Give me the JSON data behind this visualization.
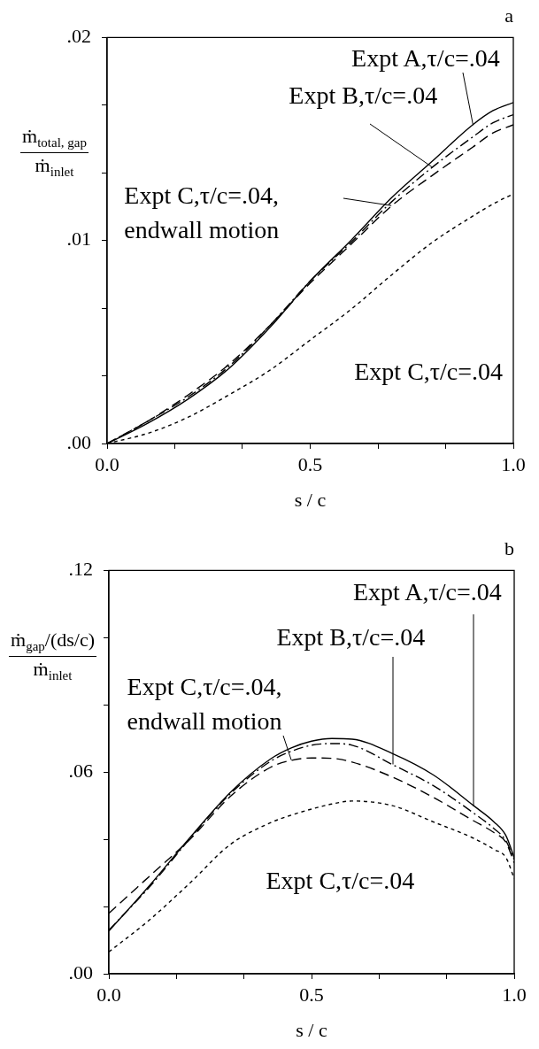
{
  "chart_data": [
    {
      "type": "line",
      "title": "a",
      "xlabel": "s / c",
      "ylabel": "ṁ$_{total, gap}$\nṁ$_{inlet}$",
      "x": [
        0,
        0.1,
        0.2,
        0.3,
        0.4,
        0.5,
        0.6,
        0.7,
        0.8,
        0.9,
        0.95,
        1
      ],
      "series": [
        {
          "name": "Expt A,τ/c=.04",
          "color": "#000000",
          "line_style": "solid",
          "values": [
            0,
            0.001,
            0.0022,
            0.0037,
            0.0057,
            0.008,
            0.01,
            0.0121,
            0.0139,
            0.0157,
            0.0164,
            0.0168
          ]
        },
        {
          "name": "Expt B,τ/c=.04",
          "color": "#000000",
          "line_style": "dashdot",
          "values": [
            0,
            0.0011,
            0.0023,
            0.0038,
            0.0058,
            0.008,
            0.0099,
            0.0119,
            0.0136,
            0.0151,
            0.0158,
            0.0162
          ]
        },
        {
          "name": "Expt C,τ/c=.04, endwall motion",
          "color": "#000000",
          "line_style": "dashed",
          "values": [
            0,
            0.0011,
            0.0024,
            0.0039,
            0.0058,
            0.0079,
            0.0098,
            0.0117,
            0.0132,
            0.0146,
            0.0153,
            0.0157
          ]
        },
        {
          "name": "Expt C,τ/c=.04",
          "color": "#000000",
          "line_style": "dotted",
          "values": [
            0,
            0.0005,
            0.0013,
            0.0024,
            0.0036,
            0.0051,
            0.0066,
            0.0083,
            0.0099,
            0.0112,
            0.0118,
            0.0123
          ]
        }
      ],
      "xlim": [
        0,
        1
      ],
      "xticks": [
        {
          "value": 0,
          "label": "0.0"
        },
        {
          "value": 0.1667,
          "label": null
        },
        {
          "value": 0.3333,
          "label": null
        },
        {
          "value": 0.5,
          "label": "0.5"
        },
        {
          "value": 0.6667,
          "label": null
        },
        {
          "value": 0.8333,
          "label": null
        },
        {
          "value": 1,
          "label": "1.0"
        }
      ],
      "ylim": [
        0,
        0.02
      ],
      "yticks": [
        {
          "value": 0,
          "label": ".00"
        },
        {
          "value": 0.00333,
          "label": null
        },
        {
          "value": 0.00667,
          "label": null
        },
        {
          "value": 0.01,
          "label": ".01"
        },
        {
          "value": 0.01333,
          "label": null
        },
        {
          "value": 0.01667,
          "label": null
        },
        {
          "value": 0.02,
          "label": ".02"
        }
      ]
    },
    {
      "type": "line",
      "title": "b",
      "xlabel": "s / c",
      "ylabel": "ṁ$_{gap}$/(ds/c)\nṁ$_{inlet}$",
      "x": [
        0,
        0.1,
        0.2,
        0.3,
        0.4,
        0.45,
        0.5,
        0.55,
        0.6,
        0.7,
        0.8,
        0.9,
        0.95,
        0.98,
        1
      ],
      "series": [
        {
          "name": "Expt A,τ/c=.04",
          "color": "#000000",
          "line_style": "solid",
          "values": [
            0.0127,
            0.0262,
            0.0405,
            0.054,
            0.064,
            0.0672,
            0.0692,
            0.07,
            0.0698,
            0.0655,
            0.0592,
            0.05,
            0.0452,
            0.041,
            0.0345
          ]
        },
        {
          "name": "Expt B,τ/c=.04",
          "color": "#000000",
          "line_style": "dashdot",
          "values": [
            0.013,
            0.0258,
            0.0402,
            0.0536,
            0.0633,
            0.0662,
            0.068,
            0.0685,
            0.068,
            0.0622,
            0.056,
            0.0478,
            0.0432,
            0.0395,
            0.034
          ]
        },
        {
          "name": "Expt C,τ/c=.04, endwall motion",
          "color": "#000000",
          "line_style": "dashed",
          "values": [
            0.018,
            0.029,
            0.04,
            0.0528,
            0.0615,
            0.0635,
            0.0642,
            0.0641,
            0.063,
            0.0585,
            0.0525,
            0.0455,
            0.042,
            0.039,
            0.033
          ]
        },
        {
          "name": "Expt C,τ/c=.04",
          "color": "#000000",
          "line_style": "dotted",
          "values": [
            0.0065,
            0.016,
            0.027,
            0.0385,
            0.045,
            0.0472,
            0.049,
            0.0505,
            0.0514,
            0.05,
            0.0452,
            0.0403,
            0.037,
            0.0345,
            0.0283
          ]
        }
      ],
      "xlim": [
        0,
        1
      ],
      "xticks": [
        {
          "value": 0,
          "label": "0.0"
        },
        {
          "value": 0.1667,
          "label": null
        },
        {
          "value": 0.3333,
          "label": null
        },
        {
          "value": 0.5,
          "label": "0.5"
        },
        {
          "value": 0.6667,
          "label": null
        },
        {
          "value": 0.8333,
          "label": null
        },
        {
          "value": 1,
          "label": "1.0"
        }
      ],
      "ylim": [
        0,
        0.12
      ],
      "yticks": [
        {
          "value": 0,
          "label": ".00"
        },
        {
          "value": 0.02,
          "label": null
        },
        {
          "value": 0.04,
          "label": null
        },
        {
          "value": 0.06,
          "label": ".06"
        },
        {
          "value": 0.08,
          "label": null
        },
        {
          "value": 0.1,
          "label": null
        },
        {
          "value": 0.12,
          "label": ".12"
        }
      ]
    }
  ]
}
